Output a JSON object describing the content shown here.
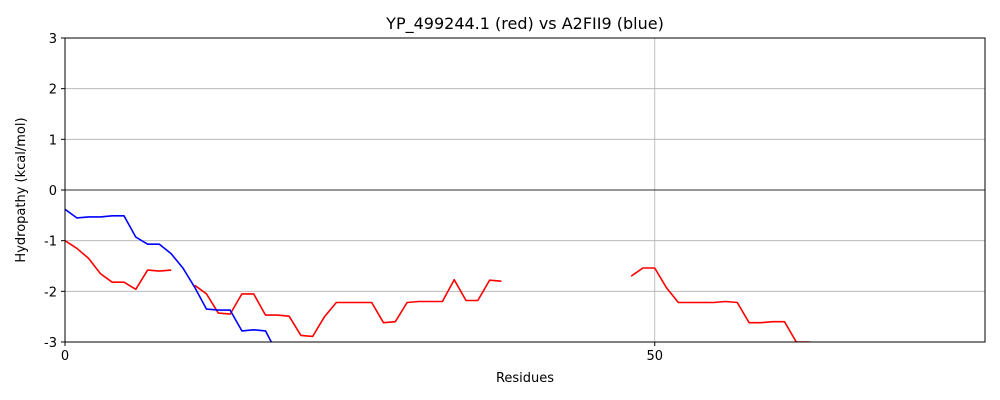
{
  "chart_data": {
    "type": "line",
    "title": "YP_499244.1 (red) vs A2FII9 (blue)",
    "xlabel": "Residues",
    "ylabel": "Hydropathy (kcal/mol)",
    "xlim": [
      0,
      78
    ],
    "ylim": [
      -3,
      3
    ],
    "xticks": [
      0,
      50
    ],
    "yticks": [
      -3,
      -2,
      -1,
      0,
      1,
      2,
      3
    ],
    "grid": true,
    "zero_line": true,
    "series": [
      {
        "color": "#ff0000",
        "segments": [
          [
            [
              0,
              -1.0
            ],
            [
              1,
              -1.15
            ],
            [
              2,
              -1.35
            ],
            [
              3,
              -1.65
            ],
            [
              4,
              -1.82
            ],
            [
              5,
              -1.82
            ],
            [
              6,
              -1.96
            ],
            [
              7,
              -1.58
            ],
            [
              8,
              -1.6
            ],
            [
              9,
              -1.58
            ]
          ],
          [
            [
              11,
              -1.88
            ],
            [
              12,
              -2.05
            ],
            [
              13,
              -2.43
            ],
            [
              14,
              -2.45
            ],
            [
              15,
              -2.05
            ],
            [
              16,
              -2.05
            ],
            [
              17,
              -2.47
            ],
            [
              18,
              -2.47
            ],
            [
              19,
              -2.49
            ],
            [
              20,
              -2.87
            ],
            [
              21,
              -2.89
            ],
            [
              22,
              -2.5
            ],
            [
              23,
              -2.22
            ],
            [
              24,
              -2.22
            ],
            [
              25,
              -2.22
            ],
            [
              26,
              -2.22
            ],
            [
              27,
              -2.62
            ],
            [
              28,
              -2.6
            ],
            [
              29,
              -2.22
            ],
            [
              30,
              -2.2
            ],
            [
              31,
              -2.2
            ],
            [
              32,
              -2.2
            ],
            [
              33,
              -1.77
            ],
            [
              34,
              -2.18
            ],
            [
              35,
              -2.18
            ],
            [
              36,
              -1.78
            ],
            [
              37,
              -1.8
            ]
          ],
          [
            [
              48,
              -1.7
            ],
            [
              49,
              -1.54
            ],
            [
              50,
              -1.54
            ],
            [
              51,
              -1.93
            ],
            [
              52,
              -2.22
            ],
            [
              53,
              -2.22
            ],
            [
              54,
              -2.22
            ],
            [
              55,
              -2.22
            ],
            [
              56,
              -2.2
            ],
            [
              57,
              -2.22
            ],
            [
              58,
              -2.62
            ],
            [
              59,
              -2.62
            ],
            [
              60,
              -2.6
            ],
            [
              61,
              -2.6
            ],
            [
              62,
              -3.0
            ],
            [
              63,
              -3.0
            ],
            [
              64,
              -3.02
            ]
          ]
        ]
      },
      {
        "color": "#0000ff",
        "segments": [
          [
            [
              0,
              -0.38
            ],
            [
              1,
              -0.55
            ],
            [
              2,
              -0.53
            ],
            [
              3,
              -0.53
            ],
            [
              4,
              -0.51
            ],
            [
              5,
              -0.51
            ],
            [
              6,
              -0.93
            ],
            [
              7,
              -1.07
            ],
            [
              8,
              -1.07
            ],
            [
              9,
              -1.26
            ],
            [
              10,
              -1.54
            ],
            [
              11,
              -1.92
            ],
            [
              12,
              -2.35
            ],
            [
              13,
              -2.37
            ],
            [
              14,
              -2.37
            ],
            [
              15,
              -2.78
            ],
            [
              16,
              -2.76
            ],
            [
              17,
              -2.78
            ],
            [
              17.6,
              -3.05
            ]
          ]
        ]
      }
    ]
  }
}
